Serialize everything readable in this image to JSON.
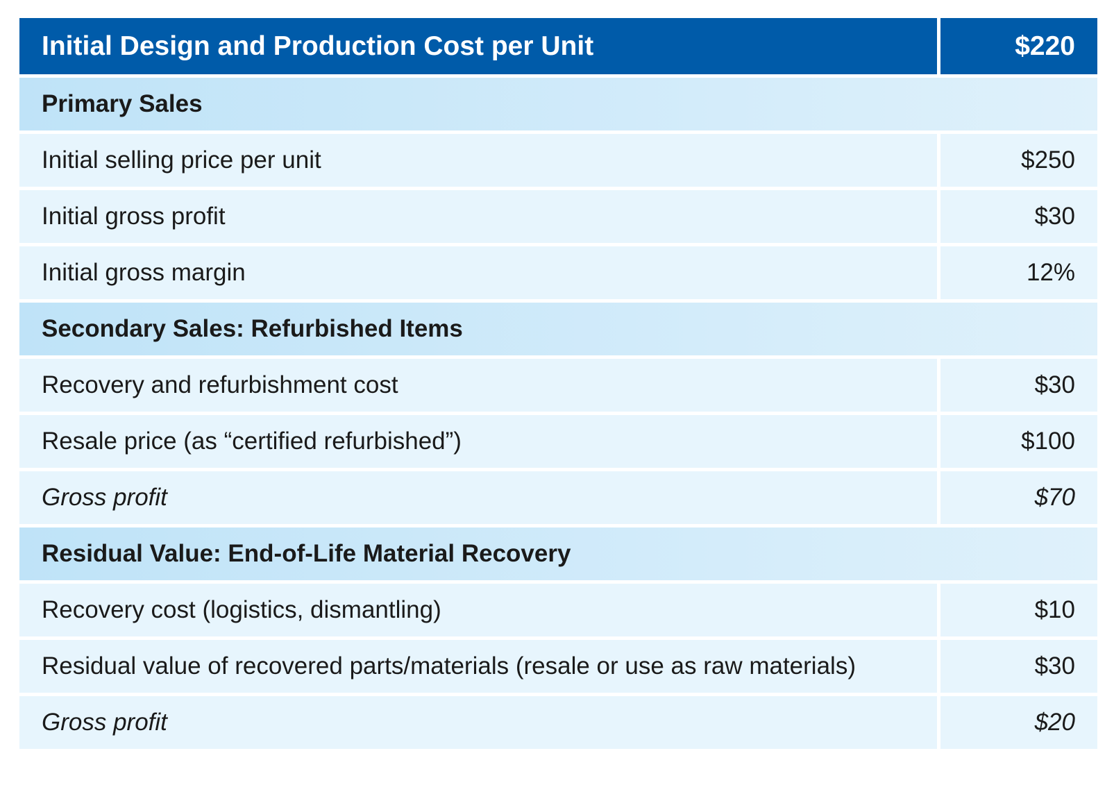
{
  "header": {
    "label": "Initial Design and Production Cost per Unit",
    "value": "$220"
  },
  "sections": [
    {
      "title": "Primary Sales",
      "rows": [
        {
          "label": "Initial selling price per unit",
          "value": "$250"
        },
        {
          "label": "Initial gross profit",
          "value": "$30"
        },
        {
          "label": "Initial gross margin",
          "value": "12%"
        }
      ]
    },
    {
      "title": "Secondary Sales: Refurbished Items",
      "rows": [
        {
          "label": "Recovery and refurbishment cost",
          "value": "$30"
        },
        {
          "label": "Resale price (as “certified refurbished”)",
          "value": "$100"
        },
        {
          "label": "Gross profit",
          "value": "$70"
        }
      ]
    },
    {
      "title": "Residual Value: End-of-Life Material Recovery",
      "rows": [
        {
          "label": "Recovery cost (logistics, dismantling)",
          "value": "$10"
        },
        {
          "label": "Residual value of recovered parts/materials (resale or use as raw materials)",
          "value": "$30"
        },
        {
          "label": "Gross profit",
          "value": "$20"
        }
      ]
    }
  ]
}
